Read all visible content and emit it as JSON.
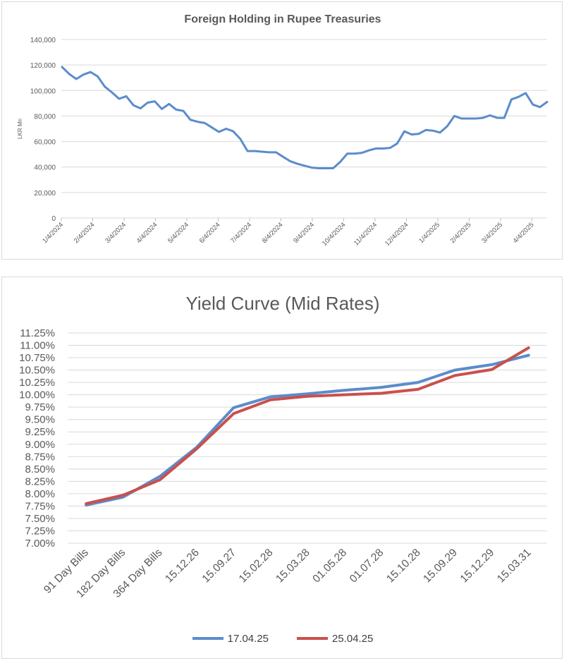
{
  "chart_data": [
    {
      "type": "line",
      "title": "Foreign Holding in Rupee Treasuries",
      "ylabel": "LKR Mn",
      "ylim": [
        0,
        140000
      ],
      "yticks": [
        "0",
        "20,000",
        "40,000",
        "60,000",
        "80,000",
        "100,000",
        "120,000",
        "140,000"
      ],
      "ytick_values": [
        0,
        20000,
        40000,
        60000,
        80000,
        100000,
        120000,
        140000
      ],
      "xticks": [
        "1/4/2024",
        "2/4/2024",
        "3/4/2024",
        "4/4/2024",
        "5/4/2024",
        "6/4/2024",
        "7/4/2024",
        "8/4/2024",
        "9/4/2024",
        "10/4/2024",
        "11/4/2024",
        "12/4/2024",
        "1/4/2025",
        "2/4/2025",
        "3/4/2025",
        "4/4/2025"
      ],
      "grid": true,
      "color": "#5b8ccc",
      "values": [
        118500,
        113000,
        109000,
        112500,
        114500,
        111000,
        103000,
        98500,
        93500,
        95500,
        88500,
        86000,
        90500,
        91500,
        85500,
        89500,
        85000,
        84000,
        77000,
        75500,
        74500,
        71000,
        67500,
        70000,
        68000,
        62000,
        52500,
        52500,
        52000,
        51500,
        51500,
        48000,
        44500,
        42500,
        41000,
        39500,
        39000,
        39000,
        39000,
        44000,
        50500,
        50500,
        51000,
        53000,
        54500,
        54500,
        55000,
        58500,
        68000,
        65500,
        66000,
        69000,
        68500,
        67000,
        72000,
        80000,
        78000,
        78000,
        78000,
        78500,
        80500,
        78500,
        78500,
        93000,
        95000,
        98000,
        89000,
        87000,
        91000
      ]
    },
    {
      "type": "line",
      "title": "Yield Curve (Mid Rates)",
      "categories": [
        "91 Day Bills",
        "182 Day Bills",
        "364 Day Bills",
        "15.12.26",
        "15.09.27",
        "15.02.28",
        "15.03.28",
        "01.05.28",
        "01.07.28",
        "15.10.28",
        "15.09.29",
        "15.12.29",
        "15.03.31"
      ],
      "yticks": [
        "7.00%",
        "7.25%",
        "7.50%",
        "7.75%",
        "8.00%",
        "8.25%",
        "8.50%",
        "8.75%",
        "9.00%",
        "9.25%",
        "9.50%",
        "9.75%",
        "10.00%",
        "10.25%",
        "10.50%",
        "10.75%",
        "11.00%",
        "11.25%"
      ],
      "ytick_values": [
        7.0,
        7.25,
        7.5,
        7.75,
        8.0,
        8.25,
        8.5,
        8.75,
        9.0,
        9.25,
        9.5,
        9.75,
        10.0,
        10.25,
        10.5,
        10.75,
        11.0,
        11.25
      ],
      "ylim": [
        7.0,
        11.25
      ],
      "grid": true,
      "legend_position": "bottom",
      "series": [
        {
          "name": "17.04.25",
          "color": "#5b8ccc",
          "values": [
            7.77,
            7.93,
            8.35,
            8.94,
            9.74,
            9.96,
            10.02,
            10.09,
            10.15,
            10.25,
            10.5,
            10.61,
            10.8
          ]
        },
        {
          "name": "25.04.25",
          "color": "#c9504c",
          "values": [
            7.8,
            7.97,
            8.28,
            8.91,
            9.62,
            9.9,
            9.97,
            10.0,
            10.03,
            10.11,
            10.39,
            10.51,
            10.95
          ]
        }
      ]
    }
  ]
}
